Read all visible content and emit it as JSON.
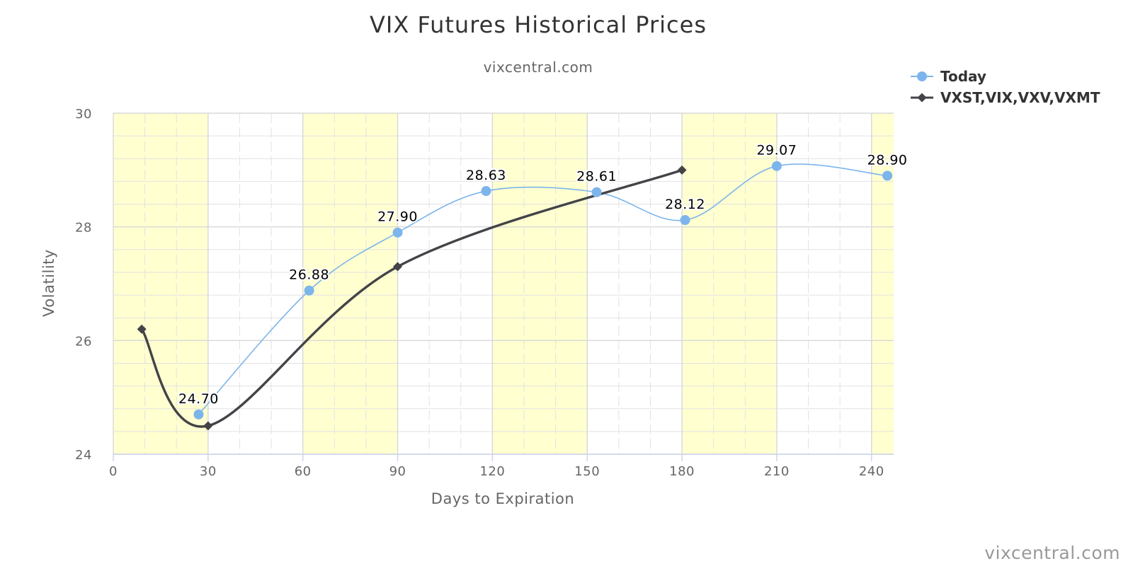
{
  "chart_data": {
    "type": "line",
    "title": "VIX Futures Historical Prices",
    "subtitle": "vixcentral.com",
    "xlabel": "Days to Expiration",
    "ylabel": "Volatility",
    "xlim": [
      0,
      247
    ],
    "ylim": [
      24,
      30
    ],
    "x_ticks": [
      0,
      30,
      60,
      90,
      120,
      150,
      180,
      210,
      240
    ],
    "y_ticks": [
      24,
      26,
      28,
      30
    ],
    "grid": true,
    "legend_position": "top-right",
    "band_color": "#ffffd0",
    "bands": [
      [
        0,
        30
      ],
      [
        60,
        90
      ],
      [
        120,
        150
      ],
      [
        180,
        210
      ],
      [
        240,
        247
      ]
    ],
    "series": [
      {
        "name": "Today",
        "color": "#7cb5ec",
        "marker": "circle",
        "x": [
          27,
          62,
          90,
          118,
          153,
          181,
          210,
          245
        ],
        "y": [
          24.7,
          26.88,
          27.9,
          28.63,
          28.61,
          28.12,
          29.07,
          28.9
        ],
        "labels": [
          "24.70",
          "26.88",
          "27.90",
          "28.63",
          "28.61",
          "28.12",
          "29.07",
          "28.90"
        ]
      },
      {
        "name": "VXST,VIX,VXV,VXMT",
        "color": "#434348",
        "marker": "diamond",
        "x": [
          9,
          30,
          90,
          180
        ],
        "y": [
          26.2,
          24.5,
          27.3,
          29.0
        ]
      }
    ],
    "credit": "vixcentral.com"
  }
}
